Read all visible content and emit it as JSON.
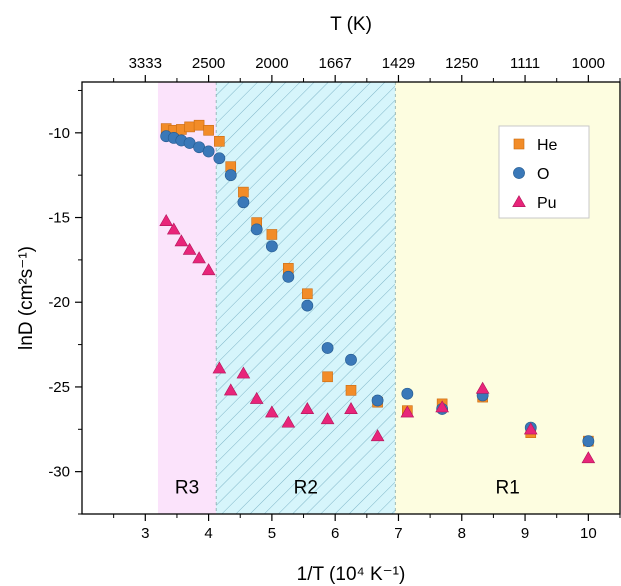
{
  "chart_data": {
    "type": "scatter",
    "title": "",
    "xlabel": "1/T (10⁴ K⁻¹)",
    "ylabel": "lnD (cm²s⁻¹)",
    "top_xlabel": "T (K)",
    "xlim": [
      2.0,
      10.5
    ],
    "ylim": [
      -32.5,
      -7.0
    ],
    "x_ticks": [
      3,
      4,
      5,
      6,
      7,
      8,
      9,
      10
    ],
    "y_ticks": [
      -10,
      -15,
      -20,
      -25,
      -30
    ],
    "top_ticks": [
      {
        "x": 3.0,
        "label": "3333"
      },
      {
        "x": 4.0,
        "label": "2500"
      },
      {
        "x": 5.0,
        "label": "2000"
      },
      {
        "x": 6.0,
        "label": "1667"
      },
      {
        "x": 7.0,
        "label": "1429"
      },
      {
        "x": 8.0,
        "label": "1250"
      },
      {
        "x": 9.0,
        "label": "1111"
      },
      {
        "x": 10.0,
        "label": "1000"
      }
    ],
    "regions": [
      {
        "label": "R3",
        "x_start": 3.2,
        "x_end": 4.12,
        "color": "#fbe3fb",
        "hatch": false
      },
      {
        "label": "R2",
        "x_start": 4.12,
        "x_end": 6.95,
        "color": "#d6f5fb",
        "hatch": true
      },
      {
        "label": "R1",
        "x_start": 6.95,
        "x_end": 10.5,
        "color": "#fdfde0",
        "hatch": false
      }
    ],
    "legend_position": "top-right",
    "grid": false,
    "series": [
      {
        "name": "He",
        "marker": "square",
        "color": "#f28c28",
        "points": [
          [
            3.33,
            -9.75
          ],
          [
            3.45,
            -9.85
          ],
          [
            3.57,
            -9.8
          ],
          [
            3.7,
            -9.65
          ],
          [
            3.85,
            -9.55
          ],
          [
            4.0,
            -9.85
          ],
          [
            4.17,
            -10.5
          ],
          [
            4.35,
            -12.0
          ],
          [
            4.55,
            -13.5
          ],
          [
            4.76,
            -15.3
          ],
          [
            5.0,
            -16.0
          ],
          [
            5.26,
            -18.0
          ],
          [
            5.56,
            -19.5
          ],
          [
            5.88,
            -24.4
          ],
          [
            6.25,
            -25.2
          ],
          [
            6.67,
            -25.9
          ],
          [
            7.14,
            -26.4
          ],
          [
            7.69,
            -26.0
          ],
          [
            8.33,
            -25.6
          ],
          [
            9.09,
            -27.7
          ],
          [
            10.0,
            -28.2
          ]
        ]
      },
      {
        "name": "O",
        "marker": "circle",
        "color": "#3a78b8",
        "points": [
          [
            3.33,
            -10.2
          ],
          [
            3.45,
            -10.3
          ],
          [
            3.57,
            -10.45
          ],
          [
            3.7,
            -10.6
          ],
          [
            3.85,
            -10.85
          ],
          [
            4.0,
            -11.1
          ],
          [
            4.17,
            -11.5
          ],
          [
            4.35,
            -12.5
          ],
          [
            4.55,
            -14.1
          ],
          [
            4.76,
            -15.7
          ],
          [
            5.0,
            -16.7
          ],
          [
            5.26,
            -18.5
          ],
          [
            5.56,
            -20.2
          ],
          [
            5.88,
            -22.7
          ],
          [
            6.25,
            -23.4
          ],
          [
            6.67,
            -25.8
          ],
          [
            7.14,
            -25.4
          ],
          [
            7.69,
            -26.3
          ],
          [
            8.33,
            -25.5
          ],
          [
            9.09,
            -27.4
          ],
          [
            10.0,
            -28.2
          ]
        ]
      },
      {
        "name": "Pu",
        "marker": "triangle",
        "color": "#e8257a",
        "points": [
          [
            3.33,
            -15.2
          ],
          [
            3.45,
            -15.7
          ],
          [
            3.57,
            -16.4
          ],
          [
            3.7,
            -16.9
          ],
          [
            3.85,
            -17.4
          ],
          [
            4.0,
            -18.1
          ],
          [
            4.17,
            -23.9
          ],
          [
            4.35,
            -25.2
          ],
          [
            4.55,
            -24.2
          ],
          [
            4.76,
            -25.7
          ],
          [
            5.0,
            -26.5
          ],
          [
            5.26,
            -27.1
          ],
          [
            5.56,
            -26.3
          ],
          [
            5.88,
            -26.9
          ],
          [
            6.25,
            -26.3
          ],
          [
            6.67,
            -27.9
          ],
          [
            7.14,
            -26.5
          ],
          [
            7.69,
            -26.2
          ],
          [
            8.33,
            -25.1
          ],
          [
            9.09,
            -27.5
          ],
          [
            10.0,
            -29.2
          ]
        ]
      }
    ]
  }
}
